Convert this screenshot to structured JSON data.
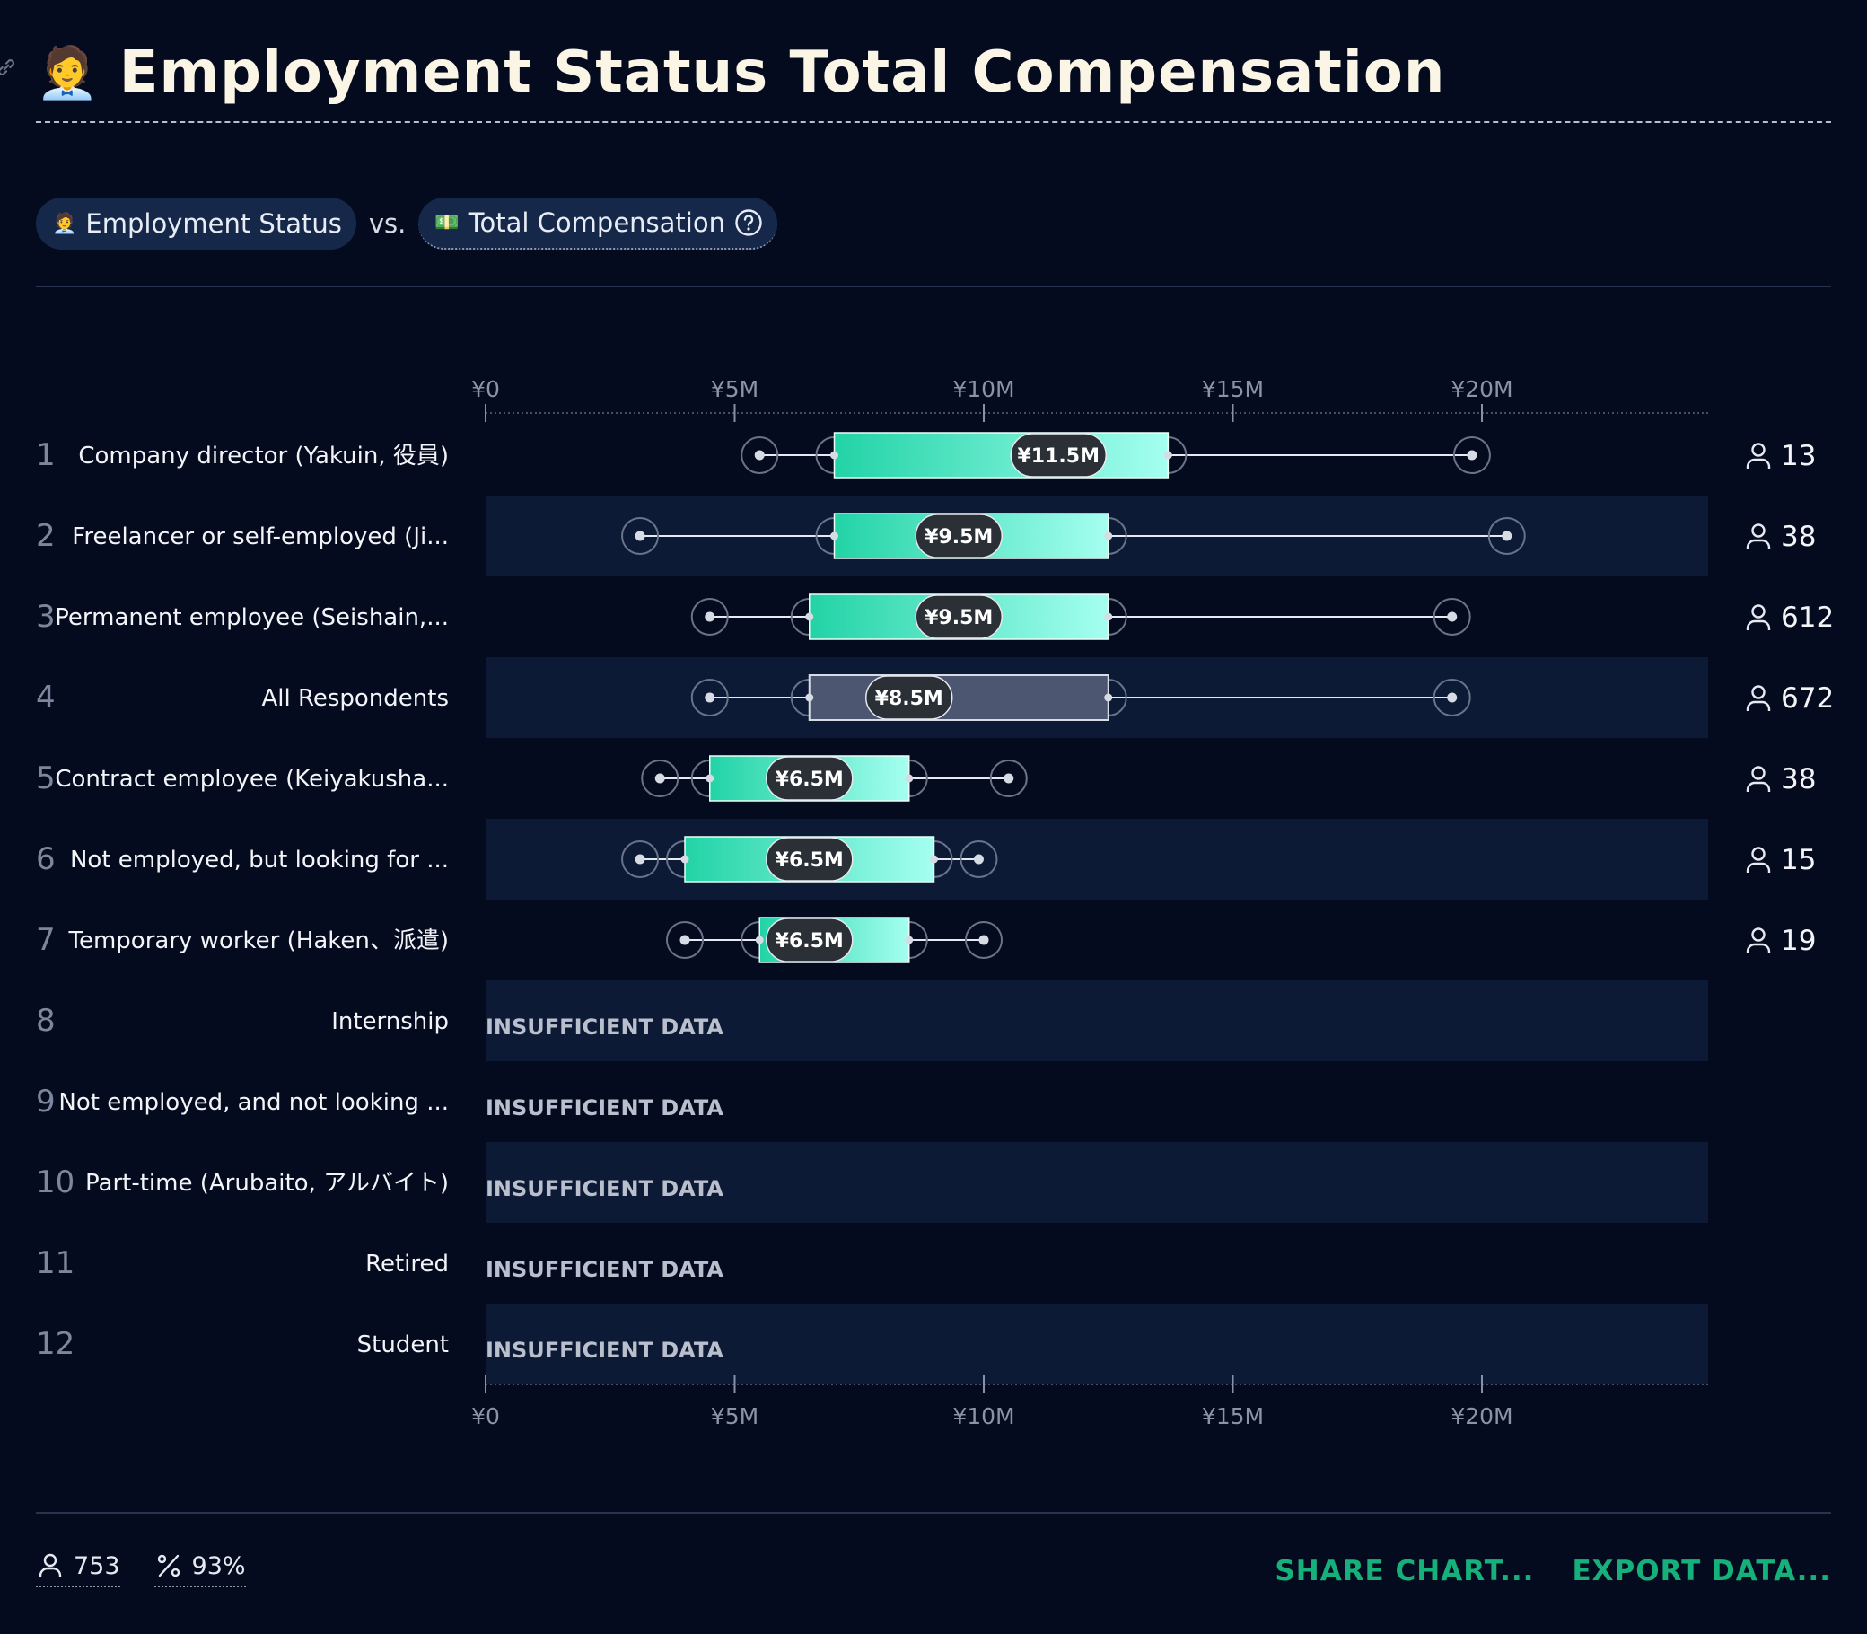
{
  "header": {
    "title": "Employment Status Total Compensation",
    "title_emoji": "🧑‍💼"
  },
  "selectors": {
    "row_variable": {
      "emoji": "🧑‍💼",
      "label": "Employment Status"
    },
    "vs_label": "vs.",
    "column_variable": {
      "emoji": "💵",
      "label": "Total Compensation"
    }
  },
  "chart_data": {
    "type": "boxplot",
    "x_ticks": [
      "¥0",
      "¥5M",
      "¥10M",
      "¥15M",
      "¥20M"
    ],
    "x_tick_values_m": [
      0,
      5,
      10,
      15,
      20
    ],
    "x_range_m": [
      0,
      24.5
    ],
    "unit": "JPY millions",
    "insufficient_label": "INSUFFICIENT DATA",
    "rows": [
      {
        "rank": "1",
        "label": "Company director (Yakuin, 役員)",
        "count": "13",
        "median_label": "¥11.5M",
        "median": 11.5,
        "min": 5.5,
        "q1": 7.0,
        "q3": 13.7,
        "max": 19.8,
        "highlight": false
      },
      {
        "rank": "2",
        "label": "Freelancer or self-employed (Ji...",
        "count": "38",
        "median_label": "¥9.5M",
        "median": 9.5,
        "min": 3.1,
        "q1": 7.0,
        "q3": 12.5,
        "max": 20.5,
        "highlight": false
      },
      {
        "rank": "3",
        "label": "Permanent employee (Seishain,...",
        "count": "612",
        "median_label": "¥9.5M",
        "median": 9.5,
        "min": 4.5,
        "q1": 6.5,
        "q3": 12.5,
        "max": 19.4,
        "highlight": false
      },
      {
        "rank": "4",
        "label": "All Respondents",
        "count": "672",
        "median_label": "¥8.5M",
        "median": 8.5,
        "min": 4.5,
        "q1": 6.5,
        "q3": 12.5,
        "max": 19.4,
        "highlight": true
      },
      {
        "rank": "5",
        "label": "Contract employee (Keiyakusha...",
        "count": "38",
        "median_label": "¥6.5M",
        "median": 6.5,
        "min": 3.5,
        "q1": 4.5,
        "q3": 8.5,
        "max": 10.5,
        "highlight": false
      },
      {
        "rank": "6",
        "label": "Not employed, but looking for ...",
        "count": "15",
        "median_label": "¥6.5M",
        "median": 6.5,
        "min": 3.1,
        "q1": 4.0,
        "q3": 9.0,
        "max": 9.9,
        "highlight": false
      },
      {
        "rank": "7",
        "label": "Temporary worker (Haken、派遣)",
        "count": "19",
        "median_label": "¥6.5M",
        "median": 6.5,
        "min": 4.0,
        "q1": 5.5,
        "q3": 8.5,
        "max": 10.0,
        "highlight": false
      },
      {
        "rank": "8",
        "label": "Internship",
        "count": null
      },
      {
        "rank": "9",
        "label": "Not employed, and not looking ...",
        "count": null
      },
      {
        "rank": "10",
        "label": "Part-time (Arubaito, アルバイト)",
        "count": null
      },
      {
        "rank": "11",
        "label": "Retired",
        "count": null
      },
      {
        "rank": "12",
        "label": "Student",
        "count": null
      }
    ]
  },
  "footer": {
    "respondents": "753",
    "percent": "93%",
    "share_label": "SHARE CHART...",
    "export_label": "EXPORT DATA..."
  },
  "colors": {
    "background": "#050b1f",
    "band": "#0d1a35",
    "box_start": "#22d3a6",
    "box_end": "#a5fff0",
    "accent": "#16b07a"
  }
}
